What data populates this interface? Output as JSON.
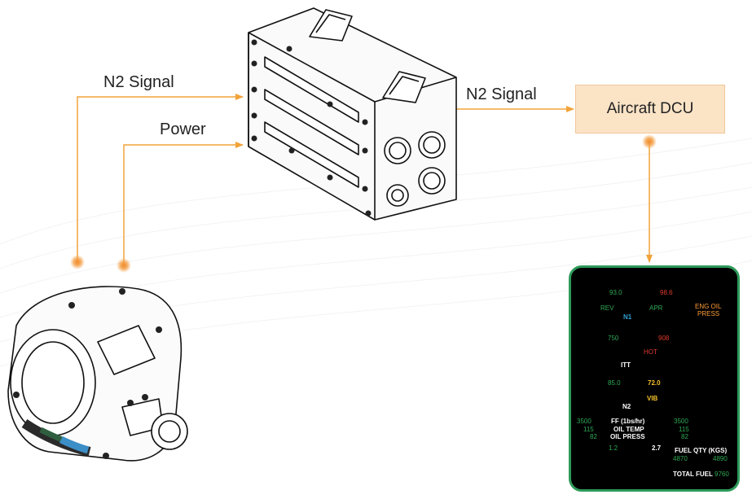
{
  "labels": {
    "n2_signal_left": "N2 Signal",
    "power": "Power",
    "n2_signal_right": "N2 Signal",
    "dcu": "Aircraft DCU"
  },
  "display": {
    "n1_rev_value": "93.0",
    "n1_rev_tag": "REV",
    "n1_apr_value": "98.6",
    "n1_apr_tag": "APR",
    "n1_label": "N1",
    "eng_oil_line1": "ENG OIL",
    "eng_oil_line2": "PRESS",
    "itt_left_value": "750",
    "itt_right_value": "908",
    "itt_hot_tag": "HOT",
    "itt_label": "ITT",
    "n2_left_value": "85.0",
    "n2_right_value": "72.0",
    "n2_vib_tag": "VIB",
    "n2_label": "N2",
    "ff_label": "FF (1bs/hr)",
    "ff_left": "3500",
    "ff_right": "3500",
    "oil_temp_label": "OIL TEMP",
    "oil_temp_left": "115",
    "oil_temp_right": "115",
    "oil_press_label": "OIL PRESS",
    "oil_press_left": "82",
    "oil_press_right": "82",
    "gauge_a_value": "1.2",
    "gauge_b_value": "2.7",
    "fuel_qty_label": "FUEL QTY (KGS)",
    "fuel_left": "4870",
    "fuel_right": "4890",
    "total_fuel_label": "TOTAL FUEL",
    "total_fuel_value": "9760"
  },
  "colors": {
    "connector": "#f2a33a",
    "dot": "#f3a24c",
    "panel_border": "#2e9a5a",
    "gauge_green": "#2faa55",
    "gauge_red": "#e23b2e",
    "gauge_white": "#ffffff",
    "gauge_yellow": "#f5c22c"
  }
}
